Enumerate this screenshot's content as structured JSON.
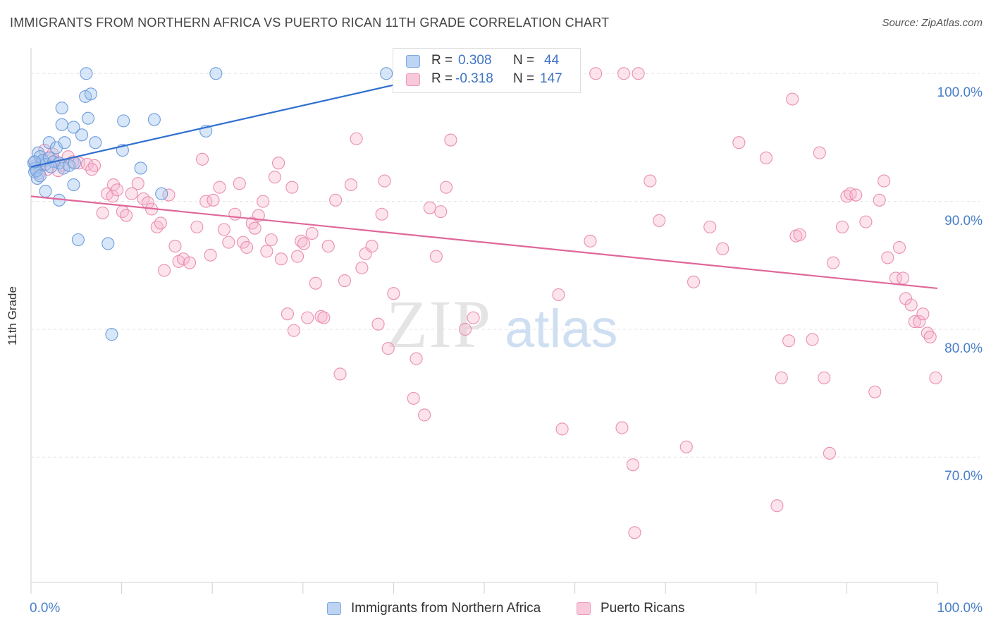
{
  "title": "IMMIGRANTS FROM NORTHERN AFRICA VS PUERTO RICAN 11TH GRADE CORRELATION CHART",
  "source": "Source: ZipAtlas.com",
  "watermark": {
    "zip": "ZIP",
    "atlas": "atlas"
  },
  "legend_top": [
    {
      "r_label": "R =",
      "r_value": "0.308",
      "n_label": "N =",
      "n_value": "44",
      "color": "#5b8fd6"
    },
    {
      "r_label": "R =",
      "r_value": "-0.318",
      "n_label": "N =",
      "n_value": "147",
      "color": "#e86f9b"
    }
  ],
  "legend_bottom": [
    {
      "label": "Immigrants from Northern Africa",
      "color": "#5b8fd6"
    },
    {
      "label": "Puerto Ricans",
      "color": "#e86f9b"
    }
  ],
  "chart_data": {
    "type": "scatter",
    "ylabel": "11th Grade",
    "x_ticks": [
      "0.0%",
      "100.0%"
    ],
    "y_ticks": [
      "100.0%",
      "90.0%",
      "80.0%",
      "70.0%"
    ],
    "xlim": [
      0,
      100
    ],
    "ylim": [
      60.2,
      102.0
    ],
    "grid": true,
    "series": [
      {
        "name": "Immigrants from Northern Africa",
        "color": "#5b8fd6",
        "trend": {
          "x": [
            0,
            40
          ],
          "y": [
            92.7,
            99.1
          ]
        },
        "points": [
          [
            0.3,
            93.0
          ],
          [
            0.5,
            92.6
          ],
          [
            0.8,
            93.8
          ],
          [
            1.0,
            93.5
          ],
          [
            1.3,
            93.2
          ],
          [
            1.6,
            92.9
          ],
          [
            2.0,
            93.4
          ],
          [
            2.5,
            93.1
          ],
          [
            3.1,
            93.0
          ],
          [
            3.6,
            92.6
          ],
          [
            4.2,
            92.8
          ],
          [
            4.8,
            93.0
          ],
          [
            0.4,
            92.3
          ],
          [
            0.7,
            91.8
          ],
          [
            2.2,
            92.7
          ],
          [
            0.6,
            92.4
          ],
          [
            1.0,
            92.0
          ],
          [
            0.4,
            93.1
          ],
          [
            2.0,
            94.6
          ],
          [
            2.8,
            94.2
          ],
          [
            3.7,
            94.6
          ],
          [
            5.6,
            95.2
          ],
          [
            7.1,
            94.6
          ],
          [
            10.1,
            94.0
          ],
          [
            3.4,
            96.0
          ],
          [
            4.7,
            95.8
          ],
          [
            6.3,
            96.5
          ],
          [
            10.2,
            96.3
          ],
          [
            13.6,
            96.4
          ],
          [
            19.3,
            95.5
          ],
          [
            3.4,
            97.3
          ],
          [
            6.0,
            98.2
          ],
          [
            6.6,
            98.4
          ],
          [
            6.1,
            100.0
          ],
          [
            20.4,
            100.0
          ],
          [
            39.2,
            100.0
          ],
          [
            1.6,
            90.8
          ],
          [
            3.1,
            90.1
          ],
          [
            4.7,
            91.3
          ],
          [
            5.2,
            87.0
          ],
          [
            8.5,
            86.7
          ],
          [
            14.4,
            90.6
          ],
          [
            12.1,
            92.6
          ],
          [
            8.9,
            79.6
          ]
        ]
      },
      {
        "name": "Puerto Ricans",
        "color": "#e86f9b",
        "trend": {
          "x": [
            0,
            100
          ],
          "y": [
            90.4,
            83.2
          ]
        },
        "points": [
          [
            0.5,
            92.8
          ],
          [
            1.2,
            93.0
          ],
          [
            1.8,
            92.5
          ],
          [
            2.6,
            93.2
          ],
          [
            3.5,
            92.8
          ],
          [
            4.6,
            93.1
          ],
          [
            5.3,
            93.0
          ],
          [
            6.2,
            92.9
          ],
          [
            7.0,
            92.8
          ],
          [
            1.5,
            94.0
          ],
          [
            2.4,
            93.7
          ],
          [
            4.1,
            93.5
          ],
          [
            0.9,
            92.2
          ],
          [
            3.0,
            92.4
          ],
          [
            6.7,
            92.5
          ],
          [
            7.9,
            89.1
          ],
          [
            8.4,
            90.6
          ],
          [
            9.0,
            90.4
          ],
          [
            9.1,
            91.3
          ],
          [
            9.5,
            90.9
          ],
          [
            10.1,
            89.2
          ],
          [
            10.5,
            88.9
          ],
          [
            11.1,
            90.6
          ],
          [
            11.8,
            91.4
          ],
          [
            12.4,
            90.2
          ],
          [
            12.9,
            89.9
          ],
          [
            13.3,
            89.4
          ],
          [
            13.9,
            88.0
          ],
          [
            14.3,
            88.3
          ],
          [
            14.7,
            84.6
          ],
          [
            15.2,
            90.5
          ],
          [
            15.9,
            86.5
          ],
          [
            16.3,
            85.3
          ],
          [
            16.8,
            85.5
          ],
          [
            17.5,
            85.2
          ],
          [
            18.3,
            88.0
          ],
          [
            18.9,
            93.3
          ],
          [
            19.3,
            90.0
          ],
          [
            19.8,
            85.8
          ],
          [
            20.1,
            90.1
          ],
          [
            20.8,
            91.1
          ],
          [
            21.3,
            87.8
          ],
          [
            21.8,
            86.8
          ],
          [
            22.5,
            89.0
          ],
          [
            23.0,
            91.4
          ],
          [
            23.4,
            86.8
          ],
          [
            23.8,
            86.4
          ],
          [
            24.4,
            88.3
          ],
          [
            24.7,
            87.9
          ],
          [
            25.1,
            88.9
          ],
          [
            25.6,
            90.0
          ],
          [
            26.0,
            86.1
          ],
          [
            26.5,
            87.0
          ],
          [
            26.9,
            91.9
          ],
          [
            27.3,
            93.0
          ],
          [
            27.6,
            85.5
          ],
          [
            28.3,
            81.2
          ],
          [
            28.8,
            91.1
          ],
          [
            29.0,
            79.9
          ],
          [
            29.4,
            85.7
          ],
          [
            29.8,
            86.9
          ],
          [
            30.1,
            86.7
          ],
          [
            30.5,
            80.9
          ],
          [
            31.0,
            87.5
          ],
          [
            31.4,
            83.6
          ],
          [
            32.0,
            81.0
          ],
          [
            32.3,
            80.9
          ],
          [
            32.8,
            86.5
          ],
          [
            33.6,
            90.1
          ],
          [
            34.1,
            76.5
          ],
          [
            34.6,
            83.8
          ],
          [
            35.3,
            91.3
          ],
          [
            35.9,
            94.9
          ],
          [
            36.5,
            84.8
          ],
          [
            36.9,
            85.9
          ],
          [
            37.6,
            86.5
          ],
          [
            38.3,
            80.4
          ],
          [
            38.7,
            89.0
          ],
          [
            39.0,
            91.6
          ],
          [
            39.4,
            78.5
          ],
          [
            40.0,
            82.8
          ],
          [
            42.2,
            74.6
          ],
          [
            42.5,
            77.7
          ],
          [
            42.7,
            100.0
          ],
          [
            43.4,
            73.3
          ],
          [
            44.0,
            89.5
          ],
          [
            44.7,
            85.7
          ],
          [
            44.9,
            100.0
          ],
          [
            45.2,
            89.2
          ],
          [
            45.8,
            91.1
          ],
          [
            46.3,
            94.8
          ],
          [
            47.9,
            80.0
          ],
          [
            48.8,
            80.9
          ],
          [
            49.3,
            100.0
          ],
          [
            51.9,
            100.0
          ],
          [
            53.7,
            100.0
          ],
          [
            55.3,
            100.0
          ],
          [
            58.2,
            82.7
          ],
          [
            58.6,
            72.2
          ],
          [
            61.7,
            86.9
          ],
          [
            62.3,
            100.0
          ],
          [
            65.2,
            72.3
          ],
          [
            65.4,
            100.0
          ],
          [
            66.4,
            69.4
          ],
          [
            66.6,
            64.1
          ],
          [
            67.0,
            100.0
          ],
          [
            68.3,
            91.6
          ],
          [
            69.3,
            88.5
          ],
          [
            72.3,
            70.8
          ],
          [
            73.1,
            83.7
          ],
          [
            74.9,
            88.0
          ],
          [
            76.3,
            86.3
          ],
          [
            78.1,
            94.6
          ],
          [
            81.1,
            93.4
          ],
          [
            82.3,
            66.2
          ],
          [
            82.8,
            76.2
          ],
          [
            83.6,
            79.1
          ],
          [
            84.0,
            98.0
          ],
          [
            84.4,
            87.3
          ],
          [
            84.8,
            87.4
          ],
          [
            86.2,
            79.2
          ],
          [
            87.0,
            93.8
          ],
          [
            87.5,
            76.2
          ],
          [
            88.1,
            70.3
          ],
          [
            88.5,
            85.2
          ],
          [
            89.5,
            88.0
          ],
          [
            90.0,
            90.4
          ],
          [
            90.4,
            90.6
          ],
          [
            91.0,
            90.5
          ],
          [
            92.1,
            88.4
          ],
          [
            93.1,
            75.1
          ],
          [
            93.6,
            90.1
          ],
          [
            94.1,
            91.6
          ],
          [
            94.5,
            85.6
          ],
          [
            95.4,
            84.0
          ],
          [
            95.8,
            86.4
          ],
          [
            96.2,
            84.0
          ],
          [
            96.5,
            82.4
          ],
          [
            97.1,
            81.9
          ],
          [
            97.5,
            80.6
          ],
          [
            98.0,
            80.6
          ],
          [
            98.4,
            81.2
          ],
          [
            98.9,
            79.7
          ],
          [
            99.2,
            79.4
          ],
          [
            99.8,
            76.2
          ]
        ]
      }
    ]
  }
}
